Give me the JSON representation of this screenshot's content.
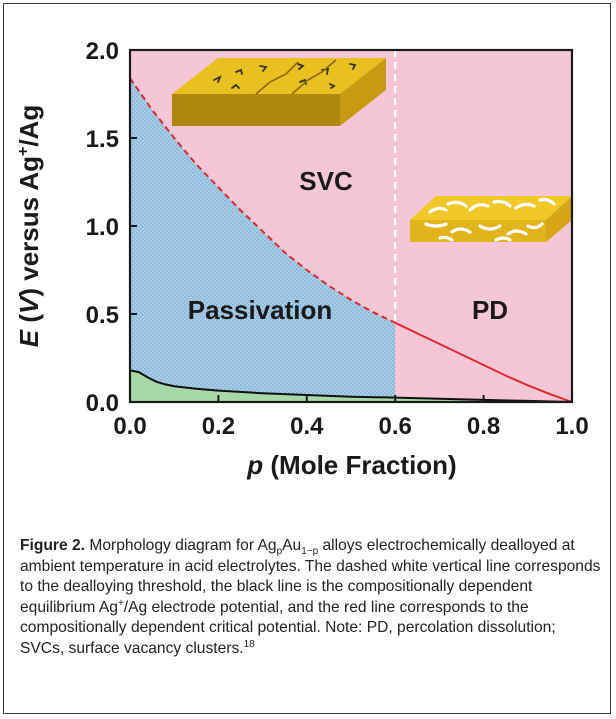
{
  "chart_data": {
    "type": "area",
    "xlabel_var": "p",
    "xlabel_rest": " (Mole Fraction)",
    "ylabel_var": "E",
    "ylabel_paren_open": " (",
    "ylabel_unit": "V",
    "ylabel_rest_a": ") versus Ag",
    "ylabel_sup": "+",
    "ylabel_rest_b": "/Ag",
    "xlim": [
      0.0,
      1.0
    ],
    "ylim": [
      0.0,
      2.0
    ],
    "xticks": [
      "0.0",
      "0.2",
      "0.4",
      "0.6",
      "0.8",
      "1.0"
    ],
    "yticks": [
      "0.0",
      "0.5",
      "1.0",
      "1.5",
      "2.0"
    ],
    "dealloying_threshold_x": 0.6,
    "critical_potential_line": {
      "color": "#e0282a",
      "points": [
        [
          0.0,
          1.84
        ],
        [
          0.05,
          1.66
        ],
        [
          0.1,
          1.5
        ],
        [
          0.15,
          1.35
        ],
        [
          0.2,
          1.22
        ],
        [
          0.25,
          1.09
        ],
        [
          0.3,
          0.97
        ],
        [
          0.35,
          0.85
        ],
        [
          0.4,
          0.75
        ],
        [
          0.45,
          0.66
        ],
        [
          0.5,
          0.58
        ],
        [
          0.55,
          0.51
        ],
        [
          0.6,
          0.45
        ],
        [
          0.65,
          0.39
        ],
        [
          0.7,
          0.33
        ],
        [
          0.75,
          0.27
        ],
        [
          0.8,
          0.21
        ],
        [
          0.85,
          0.15
        ],
        [
          0.9,
          0.095
        ],
        [
          0.95,
          0.045
        ],
        [
          1.0,
          0.0
        ]
      ]
    },
    "equilibrium_potential_line": {
      "color": "#111111",
      "points": [
        [
          0.0,
          0.18
        ],
        [
          0.02,
          0.17
        ],
        [
          0.04,
          0.14
        ],
        [
          0.06,
          0.115
        ],
        [
          0.08,
          0.1
        ],
        [
          0.1,
          0.09
        ],
        [
          0.15,
          0.075
        ],
        [
          0.2,
          0.065
        ],
        [
          0.3,
          0.05
        ],
        [
          0.4,
          0.04
        ],
        [
          0.5,
          0.03
        ],
        [
          0.6,
          0.025
        ],
        [
          0.7,
          0.018
        ],
        [
          0.8,
          0.012
        ],
        [
          0.9,
          0.006
        ],
        [
          1.0,
          0.0
        ]
      ]
    },
    "region_labels": {
      "svc": "SVC",
      "passivation": "Passivation",
      "pd": "PD"
    },
    "colors": {
      "svc_region": "#f5c6d6",
      "passivation_region": "#a8cce6",
      "base_region": "#a8d8a8",
      "threshold_line": "#ffffff",
      "slab_top": "#e8c020",
      "slab_side": "#b08810",
      "axis": "#1a1a1a"
    }
  },
  "caption": {
    "label": "Figure 2.",
    "t1": "  Morphology diagram for Ag",
    "sub_p": "p",
    "t2": "Au",
    "sub_1p": "1−p",
    "t3": " alloys electrochemically dealloyed at ambient temperature in acid electrolytes. The dashed white vertical line corresponds to the dealloying threshold, the black line is the compositionally dependent equilibrium Ag",
    "sup_plus": "+",
    "t4": "/Ag electrode potential, and the red line corresponds to the compositionally dependent critical potential. Note: PD, percolation dissolution; SVCs, surface vacancy clusters.",
    "ref": "18"
  }
}
